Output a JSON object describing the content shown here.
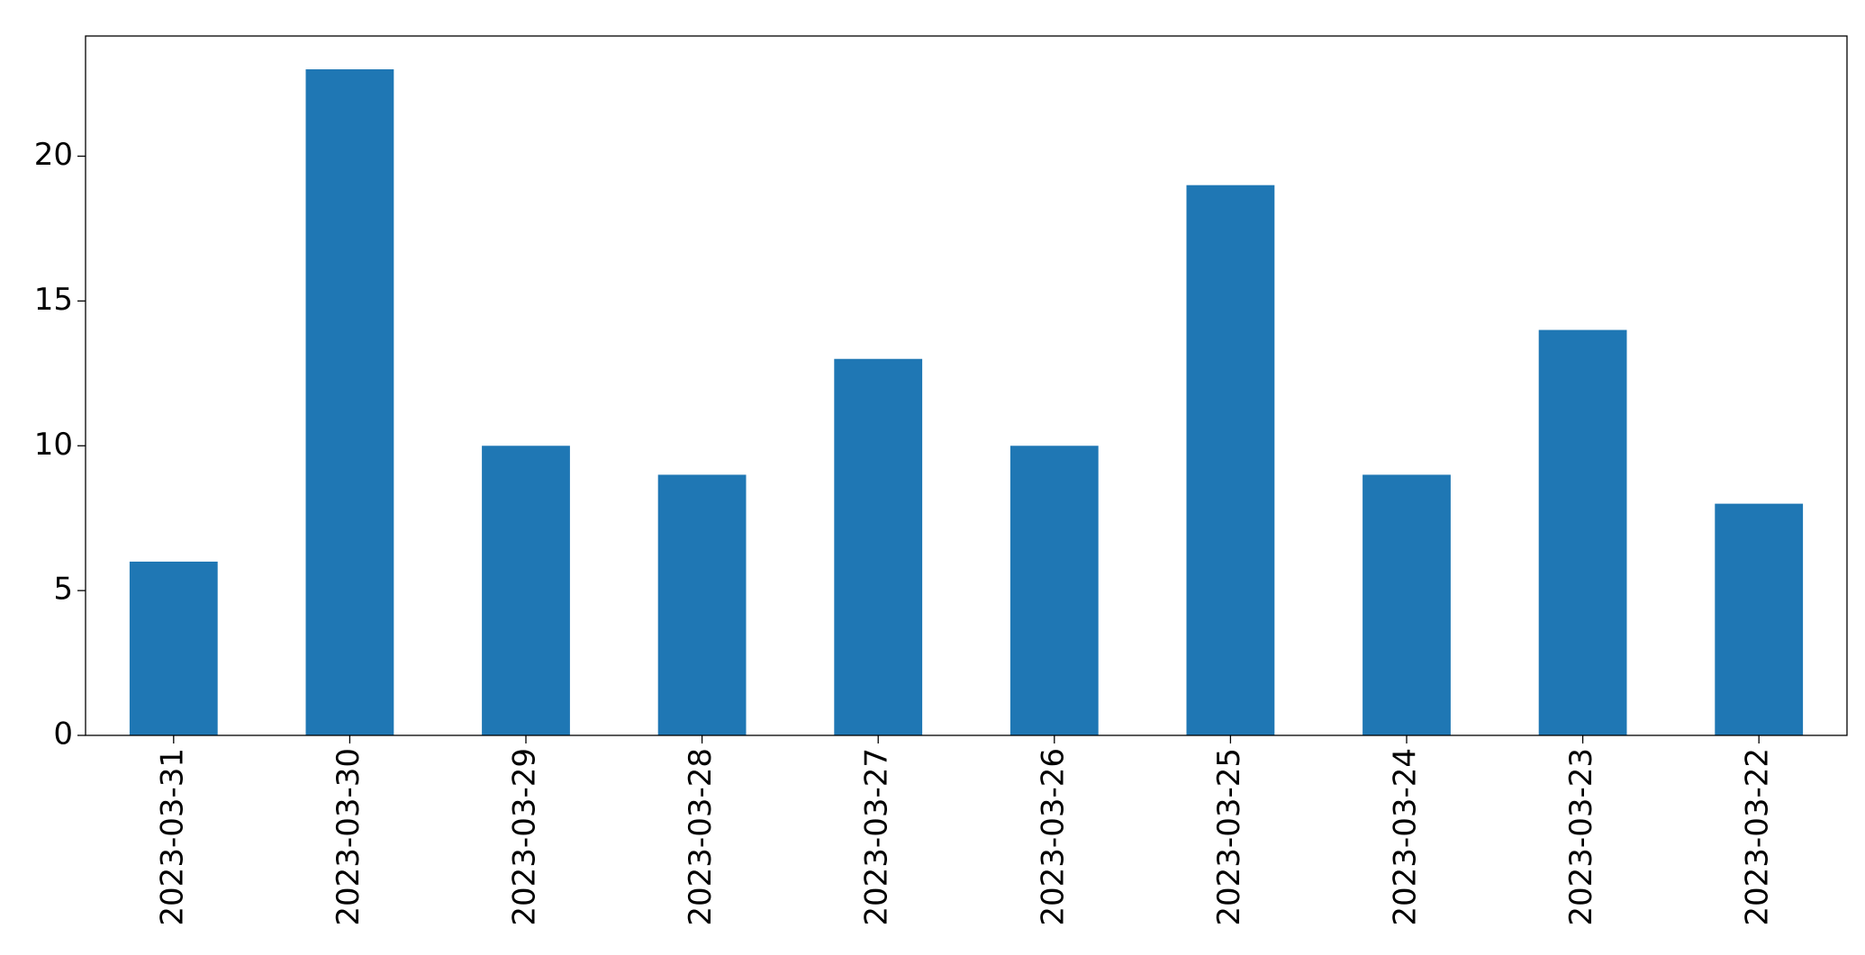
{
  "chart_data": {
    "type": "bar",
    "categories": [
      "2023-03-31",
      "2023-03-30",
      "2023-03-29",
      "2023-03-28",
      "2023-03-27",
      "2023-03-26",
      "2023-03-25",
      "2023-03-24",
      "2023-03-23",
      "2023-03-22"
    ],
    "values": [
      6,
      23,
      10,
      9,
      13,
      10,
      19,
      9,
      14,
      8
    ],
    "color": "#1f77b4",
    "ylim": [
      0,
      24.15
    ],
    "yticks": [
      0,
      5,
      10,
      15,
      20
    ],
    "grid": false
  }
}
